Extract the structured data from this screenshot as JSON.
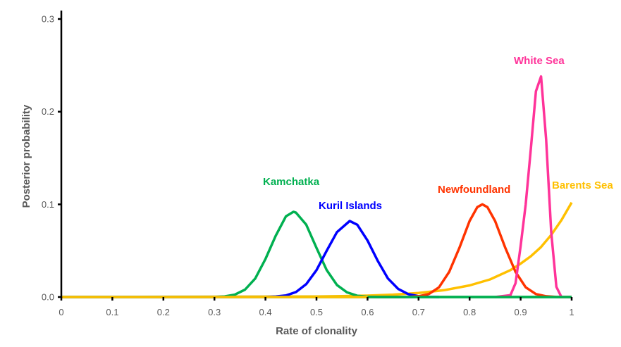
{
  "chart_data": {
    "type": "line",
    "title": "",
    "xlabel": "Rate of clonality",
    "ylabel": "Posterior probability",
    "xlim": [
      0,
      1
    ],
    "ylim": [
      0,
      0.3
    ],
    "grid": false,
    "legend": "inline labels",
    "x_ticks": [
      "0",
      "0.1",
      "0.2",
      "0.3",
      "0.4",
      "0.5",
      "0.6",
      "0.7",
      "0.8",
      "0.9",
      "1"
    ],
    "y_ticks": [
      "0.0",
      "0.1",
      "0.2",
      "0.3"
    ],
    "series": [
      {
        "name": "Barents Sea",
        "color": "#ffc000",
        "x": [
          0,
          0.5,
          0.55,
          0.6,
          0.65,
          0.7,
          0.75,
          0.8,
          0.84,
          0.88,
          0.9,
          0.92,
          0.94,
          0.96,
          0.98,
          1.0
        ],
        "y": [
          0,
          0.0005,
          0.0009,
          0.0015,
          0.0026,
          0.0044,
          0.0074,
          0.0125,
          0.019,
          0.029,
          0.036,
          0.044,
          0.054,
          0.067,
          0.083,
          0.102
        ]
      },
      {
        "name": "Kamchatka",
        "color": "#00b050",
        "x": [
          0,
          0.3,
          0.32,
          0.34,
          0.36,
          0.38,
          0.4,
          0.42,
          0.44,
          0.455,
          0.46,
          0.48,
          0.5,
          0.52,
          0.54,
          0.56,
          0.58,
          0.6,
          0.62,
          1.0
        ],
        "y": [
          0,
          0.0001,
          0.0007,
          0.0026,
          0.008,
          0.02,
          0.041,
          0.066,
          0.087,
          0.092,
          0.091,
          0.078,
          0.053,
          0.029,
          0.013,
          0.005,
          0.0014,
          0.0003,
          0,
          0
        ]
      },
      {
        "name": "Kuril Islands",
        "color": "#0000ff",
        "x": [
          0,
          0.4,
          0.42,
          0.44,
          0.46,
          0.48,
          0.5,
          0.52,
          0.54,
          0.565,
          0.58,
          0.6,
          0.62,
          0.64,
          0.66,
          0.68,
          0.7,
          0.72,
          0.74
        ],
        "y": [
          0,
          0.0001,
          0.0005,
          0.0017,
          0.0054,
          0.014,
          0.029,
          0.05,
          0.07,
          0.082,
          0.078,
          0.061,
          0.039,
          0.02,
          0.0088,
          0.0031,
          0.0009,
          0.0002,
          0
        ]
      },
      {
        "name": "Newfoundland",
        "color": "#ff3300",
        "x": [
          0.6,
          0.68,
          0.7,
          0.72,
          0.74,
          0.76,
          0.78,
          0.8,
          0.815,
          0.825,
          0.835,
          0.85,
          0.87,
          0.89,
          0.91,
          0.93,
          0.95,
          0.97,
          1.0
        ],
        "y": [
          0,
          0.0001,
          0.0008,
          0.0032,
          0.0105,
          0.027,
          0.053,
          0.082,
          0.097,
          0.1,
          0.097,
          0.082,
          0.053,
          0.027,
          0.0105,
          0.0032,
          0.0008,
          0.0001,
          0
        ]
      },
      {
        "name": "White Sea",
        "color": "#ff3399",
        "x": [
          0.85,
          0.88,
          0.89,
          0.9,
          0.91,
          0.92,
          0.93,
          0.94,
          0.95,
          0.96,
          0.97,
          0.98
        ],
        "y": [
          0,
          0.002,
          0.015,
          0.055,
          0.1,
          0.16,
          0.222,
          0.238,
          0.17,
          0.07,
          0.011,
          0
        ]
      }
    ]
  }
}
